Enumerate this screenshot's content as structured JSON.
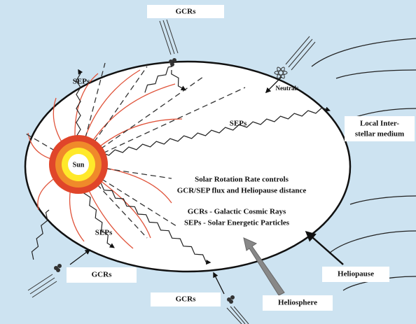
{
  "labels": {
    "gcrs_top": "GCRs",
    "seps_upper": "SEPs",
    "neutrals": "Neutrals",
    "seps_middle": "SEPs",
    "local_medium": [
      "Local Inter-",
      "stellar medium"
    ],
    "sun": "Sun",
    "rotation_note": [
      "Solar Rotation Rate controls",
      "GCR/SEP flux and Heliopause distance"
    ],
    "legend": [
      "GCRs - Galactic Cosmic Rays",
      "SEPs - Solar Energetic Particles"
    ],
    "seps_lower": "SEPs",
    "gcrs_left": "GCRs",
    "gcrs_bottom": "GCRs",
    "heliosphere": "Heliosphere",
    "heliopause": "Heliopause"
  }
}
